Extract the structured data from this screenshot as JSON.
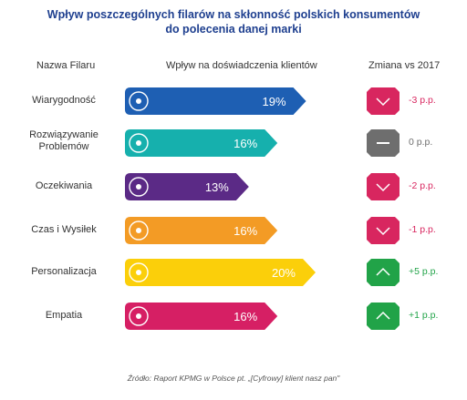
{
  "title_line1": "Wpływ poszczególnych filarów na skłonność polskich konsumentów",
  "title_line2": "do polecenia danej marki",
  "headers": {
    "name": "Nazwa Filaru",
    "impact": "Wpływ na doświadczenia klientów",
    "change": "Zmiana vs 2017"
  },
  "source": "Źródło: Raport KPMG w Polsce pt. „[Cyfrowy] klient nasz pan\"",
  "colors": {
    "down": "#d8265f",
    "flat": "#6e6e6e",
    "up": "#21a348",
    "title": "#1e3f8f"
  },
  "chart_data": {
    "type": "bar",
    "orientation": "horizontal",
    "categories": [
      "Wiarygodność",
      "Rozwiązywanie Problemów",
      "Oczekiwania",
      "Czas i Wysiłek",
      "Personalizacja",
      "Empatia"
    ],
    "values": [
      19,
      16,
      13,
      16,
      20,
      16
    ],
    "value_labels": [
      "19%",
      "16%",
      "13%",
      "16%",
      "20%",
      "16%"
    ],
    "value_unit": "%",
    "bar_colors": [
      "#1e5fb3",
      "#16b0ad",
      "#5b2a86",
      "#f39b25",
      "#fbcf0a",
      "#d61f64"
    ],
    "icons": [
      "scales-icon",
      "lightbulb-gear-icon",
      "expectation-sign-icon",
      "hourglass-icon",
      "person-icon",
      "empathy-heart-icon"
    ],
    "changes": [
      {
        "label": "-3 p.p.",
        "direction": "down",
        "value": -3
      },
      {
        "label": "0 p.p.",
        "direction": "flat",
        "value": 0
      },
      {
        "label": "-2 p.p.",
        "direction": "down",
        "value": -2
      },
      {
        "label": "-1 p.p.",
        "direction": "down",
        "value": -1
      },
      {
        "label": "+5 p.p.",
        "direction": "up",
        "value": 5
      },
      {
        "label": "+1 p.p.",
        "direction": "up",
        "value": 1
      }
    ]
  }
}
